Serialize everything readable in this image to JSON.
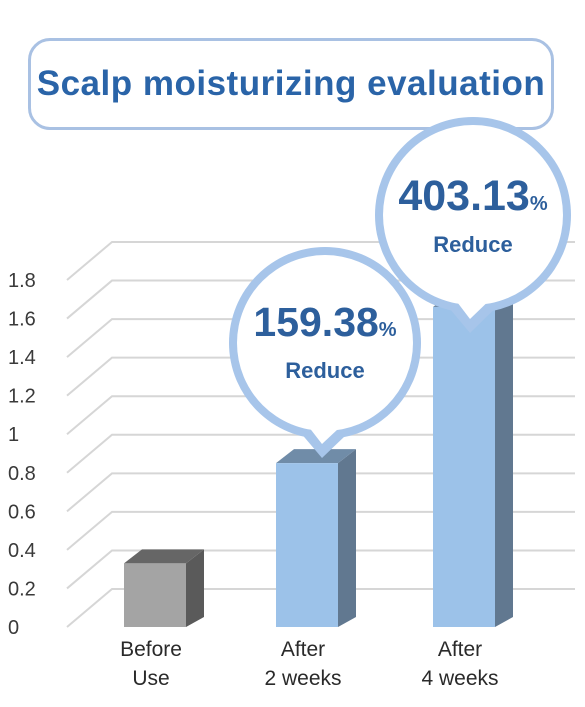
{
  "chart_data": {
    "type": "bar",
    "title": "Scalp moisturizing evaluation",
    "categories": [
      [
        "Before",
        "Use"
      ],
      [
        "After",
        "2 weeks"
      ],
      [
        "After",
        "4 weeks"
      ]
    ],
    "values": [
      0.33,
      0.85,
      1.66
    ],
    "ylim": [
      0,
      1.8
    ],
    "yticks": [
      "0",
      "0.2",
      "0.4",
      "0.6",
      "0.8",
      "1",
      "1.2",
      "1.4",
      "1.6",
      "1.8"
    ],
    "grid": true,
    "colors": {
      "baseline_bar": "#a4a4a4",
      "treated_bar": "#9cc2e9",
      "callout_ring": "#a7c5ea",
      "label_text": "#2d5f9c",
      "title_text": "#2a64a8"
    },
    "annotations": [
      {
        "category_index": 1,
        "value": "159.38",
        "unit": "%",
        "label": "Reduce"
      },
      {
        "category_index": 2,
        "value": "403.13",
        "unit": "%",
        "label": "Reduce"
      }
    ]
  }
}
